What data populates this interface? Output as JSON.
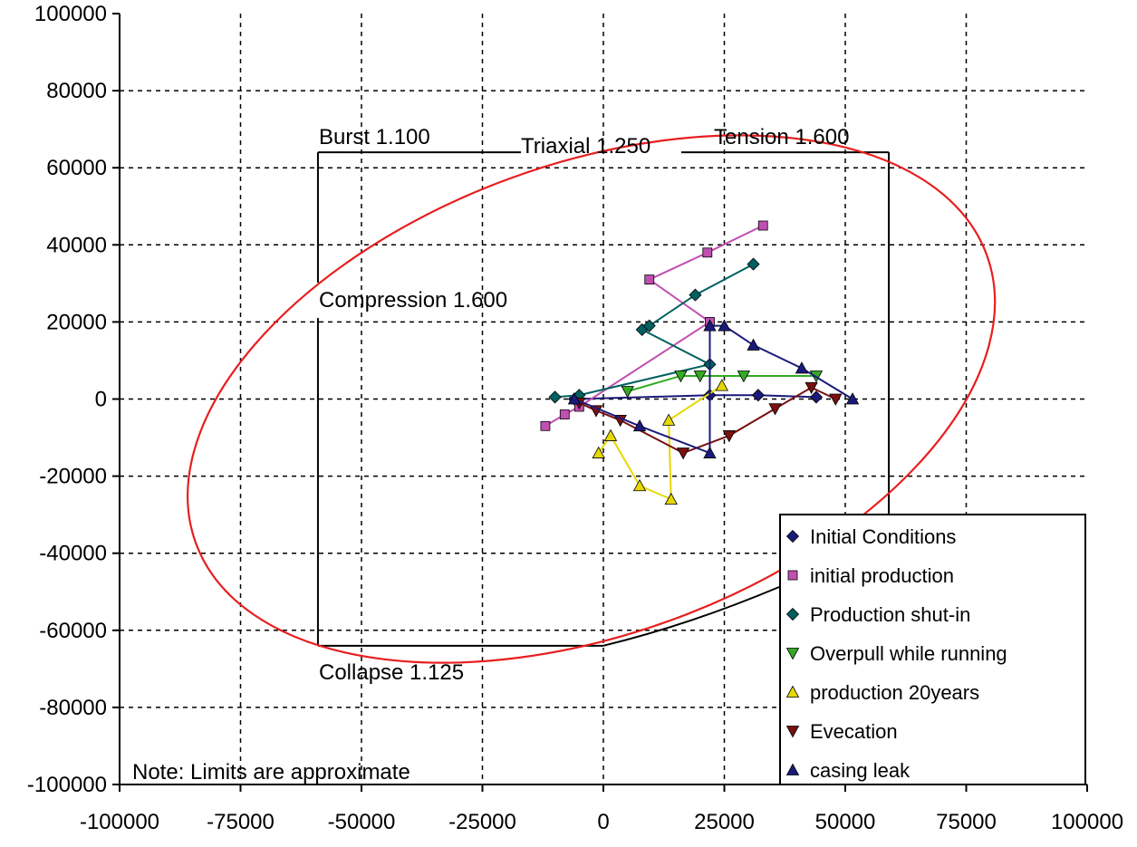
{
  "chart_data": {
    "type": "scatter",
    "title": "",
    "xlabel": "",
    "ylabel": "",
    "xlim": [
      -100000,
      100000
    ],
    "ylim": [
      -100000,
      100000
    ],
    "xticks": [
      -100000,
      -75000,
      -50000,
      -25000,
      0,
      25000,
      50000,
      75000,
      100000
    ],
    "yticks": [
      -100000,
      -80000,
      -60000,
      -40000,
      -20000,
      0,
      20000,
      40000,
      60000,
      80000,
      100000
    ],
    "xtick_labels": [
      "-100000",
      "-75000",
      "-50000",
      "-25000",
      "0",
      "25000",
      "50000",
      "75000",
      "100000"
    ],
    "ytick_labels": [
      "-100000",
      "-80000",
      "-60000",
      "-40000",
      "-20000",
      "0",
      "20000",
      "40000",
      "60000",
      "80000",
      "100000"
    ],
    "grid": true,
    "legend_position": "bottom-right",
    "annotations": {
      "burst": "Burst 1.100",
      "triaxial": "Triaxial 1.250",
      "tension": "Tension 1.600",
      "compression": "Compression 1.600",
      "collapse": "Collapse 1.125",
      "note": "Note: Limits are approximate"
    },
    "limits_box": {
      "burst_x": -59000,
      "tension_x": 59000,
      "top_y": 64000,
      "collapse_y": -64000,
      "compression_y": 21000,
      "color": "#000000"
    },
    "triaxial_ellipse": {
      "center": [
        -2500,
        0
      ],
      "semi_axes": [
        87000,
        61000
      ],
      "tilt_deg": 20,
      "color": "#e81e1e"
    },
    "series": [
      {
        "name": "Initial Conditions",
        "color": "#1a1a7a",
        "marker": "diamond",
        "points": [
          [
            -6000,
            0
          ],
          [
            22000,
            1000
          ],
          [
            32000,
            1000
          ],
          [
            44000,
            500
          ]
        ]
      },
      {
        "name": "initial production",
        "color": "#c050b0",
        "marker": "square",
        "points": [
          [
            -12000,
            -7000
          ],
          [
            -8000,
            -4000
          ],
          [
            -5000,
            -2000
          ],
          [
            22000,
            20000
          ],
          [
            9500,
            31000
          ],
          [
            21500,
            38000
          ],
          [
            33000,
            45000
          ]
        ]
      },
      {
        "name": "Production shut-in",
        "color": "#006060",
        "marker": "diamond",
        "points": [
          [
            -10000,
            500
          ],
          [
            -5000,
            1000
          ],
          [
            22000,
            9000
          ],
          [
            8000,
            18000
          ],
          [
            9500,
            19000
          ],
          [
            19000,
            27000
          ],
          [
            31000,
            35000
          ]
        ]
      },
      {
        "name": "Overpull while running",
        "color": "#33aa22",
        "marker": "triangle-down",
        "points": [
          [
            5000,
            2000
          ],
          [
            16000,
            6000
          ],
          [
            20000,
            6000
          ],
          [
            29000,
            6000
          ],
          [
            44000,
            6000
          ]
        ]
      },
      {
        "name": "production 20years",
        "color": "#e6d800",
        "marker": "triangle-up",
        "points": [
          [
            -1000,
            -14000
          ],
          [
            1500,
            -9500
          ],
          [
            7500,
            -22500
          ],
          [
            14000,
            -26000
          ],
          [
            13500,
            -5500
          ],
          [
            24500,
            3500
          ]
        ]
      },
      {
        "name": "Evecation",
        "color": "#7a1010",
        "marker": "triangle-down",
        "points": [
          [
            -5000,
            -1000
          ],
          [
            -1500,
            -3000
          ],
          [
            3500,
            -5500
          ],
          [
            16500,
            -14000
          ],
          [
            26000,
            -9500
          ],
          [
            35500,
            -2500
          ],
          [
            43000,
            3000
          ],
          [
            48000,
            0
          ]
        ]
      },
      {
        "name": "casing leak",
        "color": "#1a1a7a",
        "marker": "triangle-up",
        "points": [
          [
            -6000,
            0
          ],
          [
            7500,
            -7000
          ],
          [
            22000,
            -14000
          ],
          [
            22000,
            19000
          ],
          [
            25000,
            19000
          ],
          [
            31000,
            14000
          ],
          [
            41000,
            8000
          ],
          [
            51500,
            0
          ]
        ]
      }
    ]
  }
}
